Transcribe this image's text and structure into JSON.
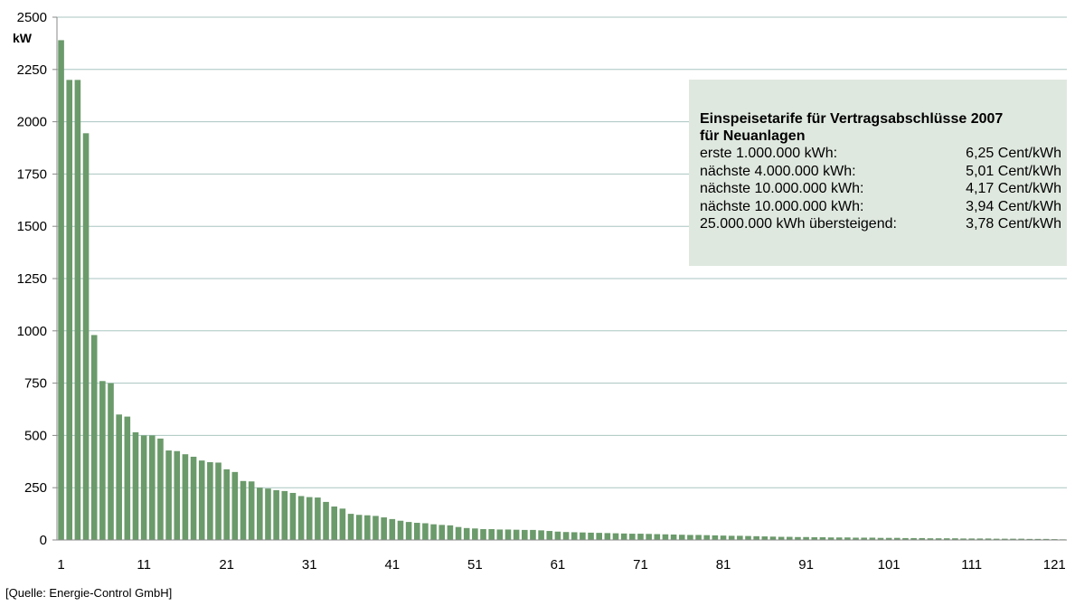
{
  "chart_data": {
    "type": "bar",
    "ylabel": "kW",
    "ylim": [
      0,
      2500
    ],
    "yticks": [
      0,
      250,
      500,
      750,
      1000,
      1250,
      1500,
      1750,
      2000,
      2250,
      2500
    ],
    "xticks": [
      "1",
      "11",
      "21",
      "31",
      "41",
      "51",
      "61",
      "71",
      "81",
      "91",
      "101",
      "111",
      "121"
    ],
    "bar_color": "#6b9a6b",
    "grid": true,
    "values": [
      2390,
      2200,
      2200,
      1945,
      980,
      760,
      750,
      600,
      590,
      515,
      500,
      500,
      485,
      428,
      425,
      410,
      398,
      380,
      372,
      370,
      338,
      325,
      282,
      280,
      250,
      246,
      238,
      234,
      225,
      210,
      205,
      203,
      182,
      160,
      150,
      125,
      120,
      118,
      115,
      108,
      100,
      92,
      86,
      82,
      80,
      75,
      72,
      70,
      62,
      57,
      55,
      52,
      52,
      50,
      50,
      49,
      48,
      48,
      46,
      43,
      40,
      38,
      37,
      36,
      35,
      34,
      33,
      32,
      31,
      30,
      30,
      29,
      28,
      27,
      26,
      25,
      24,
      24,
      23,
      22,
      21,
      20,
      20,
      19,
      18,
      17,
      16,
      15,
      15,
      14,
      14,
      13,
      13,
      12,
      12,
      12,
      11,
      11,
      11,
      10,
      10,
      10,
      9,
      9,
      9,
      8,
      8,
      8,
      8,
      7,
      7,
      7,
      7,
      6,
      6,
      6,
      6,
      5,
      5,
      5,
      4,
      3
    ]
  },
  "legend": {
    "title_line1": "Einspeisetarife für Vertragsabschlüsse 2007",
    "title_line2": "für Neuanlagen",
    "rows": [
      {
        "label": "erste 1.000.000 kWh:",
        "rate": "6,25 Cent/kWh"
      },
      {
        "label": "nächste 4.000.000 kWh:",
        "rate": "5,01 Cent/kWh"
      },
      {
        "label": "nächste 10.000.000 kWh:",
        "rate": "4,17 Cent/kWh"
      },
      {
        "label": "nächste 10.000.000 kWh:",
        "rate": "3,94 Cent/kWh"
      },
      {
        "label": "25.000.000 kWh übersteigend:",
        "rate": "3,78 Cent/kWh"
      }
    ]
  },
  "source": "[Quelle: Energie-Control GmbH]"
}
